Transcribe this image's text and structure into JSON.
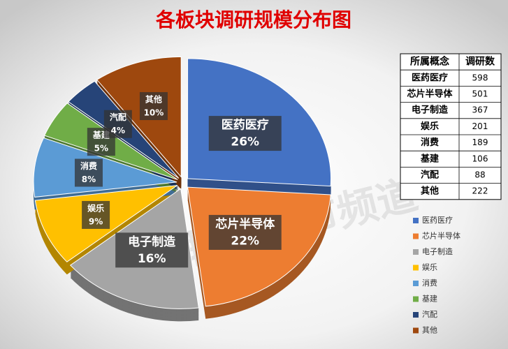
{
  "chart_data": {
    "type": "pie",
    "title": "各板块调研规模分布图",
    "categories": [
      "医药医疗",
      "芯片半导体",
      "电子制造",
      "娱乐",
      "消费",
      "基建",
      "汽配",
      "其他"
    ],
    "values": [
      26,
      22,
      16,
      9,
      8,
      5,
      4,
      10
    ],
    "value_labels": [
      "26%",
      "22%",
      "16%",
      "9%",
      "8%",
      "5%",
      "4%",
      "10%"
    ],
    "colors": [
      "#4472c4",
      "#ed7d31",
      "#a5a5a5",
      "#ffc000",
      "#5b9bd5",
      "#70ad47",
      "#264478",
      "#9e480e"
    ],
    "legend": "right"
  },
  "table": {
    "columns": [
      "所属概念",
      "调研数"
    ],
    "rows": [
      [
        "医药医疗",
        598
      ],
      [
        "芯片半导体",
        501
      ],
      [
        "电子制造",
        367
      ],
      [
        "娱乐",
        201
      ],
      [
        "消费",
        189
      ],
      [
        "基建",
        106
      ],
      [
        "汽配",
        88
      ],
      [
        "其他",
        222
      ]
    ]
  },
  "watermark": "财联社股市频道"
}
